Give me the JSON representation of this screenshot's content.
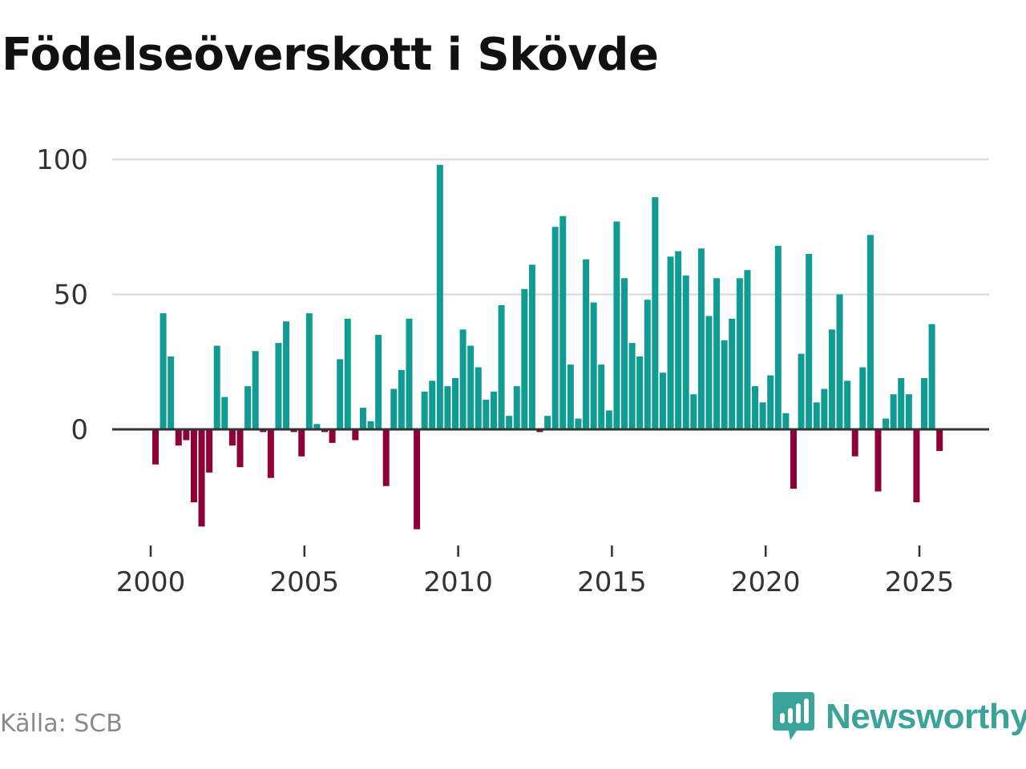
{
  "title": "Födelseöverskott i Skövde",
  "source": "Källa: SCB",
  "brand": "Newsworthy",
  "colors": {
    "positive": "#109c93",
    "negative": "#8e0038",
    "grid": "#dddddd",
    "zero_line": "#333333",
    "brand": "#3aa39a"
  },
  "chart_data": {
    "type": "bar",
    "title": "Födelseöverskott i Skövde",
    "xlabel": "",
    "ylabel": "",
    "ylim": [
      -39,
      100
    ],
    "yticks": [
      0,
      50,
      100
    ],
    "xticks": [
      2000,
      2005,
      2010,
      2015,
      2020,
      2025
    ],
    "xlim": [
      1998.6,
      2027.8
    ],
    "interval": "quarterly",
    "x_start": 2000.0,
    "step": 0.25,
    "values": [
      -13,
      43,
      27,
      -6,
      -4,
      -27,
      -36,
      -16,
      31,
      12,
      -6,
      -14,
      16,
      29,
      -1,
      -18,
      32,
      40,
      -1,
      -10,
      43,
      2,
      -1,
      -5,
      26,
      41,
      -4,
      8,
      3,
      35,
      -21,
      15,
      22,
      41,
      -37,
      14,
      18,
      98,
      16,
      19,
      37,
      31,
      23,
      11,
      14,
      46,
      5,
      16,
      52,
      61,
      -1,
      5,
      75,
      79,
      24,
      4,
      63,
      47,
      24,
      7,
      77,
      56,
      32,
      27,
      48,
      86,
      21,
      64,
      66,
      57,
      13,
      67,
      42,
      56,
      33,
      41,
      56,
      59,
      16,
      10,
      20,
      68,
      6,
      -22,
      28,
      65,
      10,
      15,
      37,
      50,
      18,
      -10,
      23,
      72,
      -23,
      4,
      13,
      19,
      13,
      -27,
      19,
      39,
      -8
    ]
  }
}
